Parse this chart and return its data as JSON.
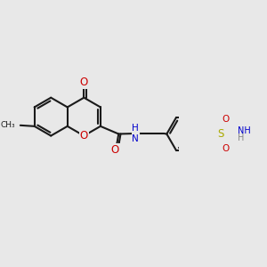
{
  "bg_color": "#e8e8e8",
  "bond_color": "#1a1a1a",
  "bond_width": 1.5,
  "atom_colors": {
    "O": "#cc0000",
    "N": "#0000cc",
    "S": "#aaaa00",
    "C": "#1a1a1a",
    "H": "#888888"
  },
  "font_size": 8.5
}
